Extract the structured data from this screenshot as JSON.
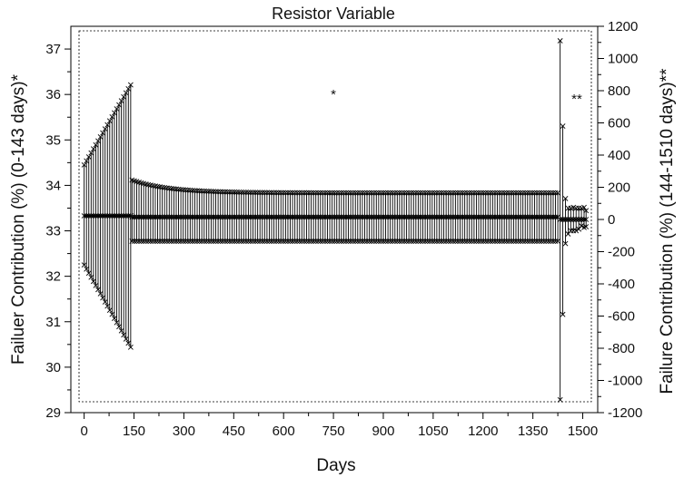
{
  "chart_data": {
    "type": "scatter",
    "title": "Resistor Variable",
    "xlabel": "Days",
    "ylabel_left": "Failuer Contribution (%) (0-143 days)*",
    "ylabel_right": "Failure Contribution (%) (144-1510 days)**",
    "x_ticks": [
      "0",
      "150",
      "300",
      "450",
      "600",
      "750",
      "900",
      "1050",
      "1200",
      "1350",
      "1500"
    ],
    "y_left_ticks": [
      "29",
      "30",
      "31",
      "32",
      "33",
      "34",
      "35",
      "36",
      "37"
    ],
    "y_right_ticks": [
      "-1200",
      "-1000",
      "-800",
      "-600",
      "-400",
      "-200",
      "0",
      "200",
      "400",
      "600",
      "800",
      "1000",
      "1200"
    ],
    "xlim": [
      -40,
      1545
    ],
    "ylim_left": [
      29,
      37.5
    ],
    "ylim_right": [
      -1200,
      1200
    ],
    "annotations": [
      {
        "text": "*",
        "x": 745,
        "y_left": 35.9
      },
      {
        "text": "**",
        "x": 1465,
        "y_left": 35.8
      }
    ],
    "series": [
      {
        "axis": "left",
        "marker": "x",
        "x_start": 0,
        "x_end": 143,
        "x_step": 7,
        "y_center": 33.33,
        "upper_start": 34.45,
        "upper_end": 36.25,
        "lower_start": 32.25,
        "lower_end": 30.4
      },
      {
        "axis": "right",
        "marker": "x",
        "x_start": 144,
        "x_end": 1425,
        "x_step": 7,
        "y_center": 15,
        "upper_start": 245,
        "upper_plateau": 165,
        "lower_start": -135,
        "lower_plateau": -135
      },
      {
        "axis": "right",
        "marker": "x",
        "points": [
          {
            "x": 1432,
            "y": 0,
            "upper": 1110,
            "lower": -1120
          },
          {
            "x": 1440,
            "y": 0,
            "upper": 580,
            "lower": -590
          },
          {
            "x": 1448,
            "y": 0,
            "upper": 130,
            "lower": -150
          },
          {
            "x": 1456,
            "y": 0,
            "upper": 70,
            "lower": -90
          },
          {
            "x": 1464,
            "y": 0,
            "upper": 70,
            "lower": -70
          },
          {
            "x": 1472,
            "y": 0,
            "upper": 75,
            "lower": -70
          },
          {
            "x": 1480,
            "y": 0,
            "upper": 70,
            "lower": -70
          },
          {
            "x": 1488,
            "y": 0,
            "upper": 70,
            "lower": -60
          },
          {
            "x": 1496,
            "y": 0,
            "upper": 70,
            "lower": -40
          },
          {
            "x": 1504,
            "y": 0,
            "upper": 75,
            "lower": -50
          },
          {
            "x": 1510,
            "y": 0,
            "upper": 55,
            "lower": -45
          }
        ]
      }
    ]
  }
}
